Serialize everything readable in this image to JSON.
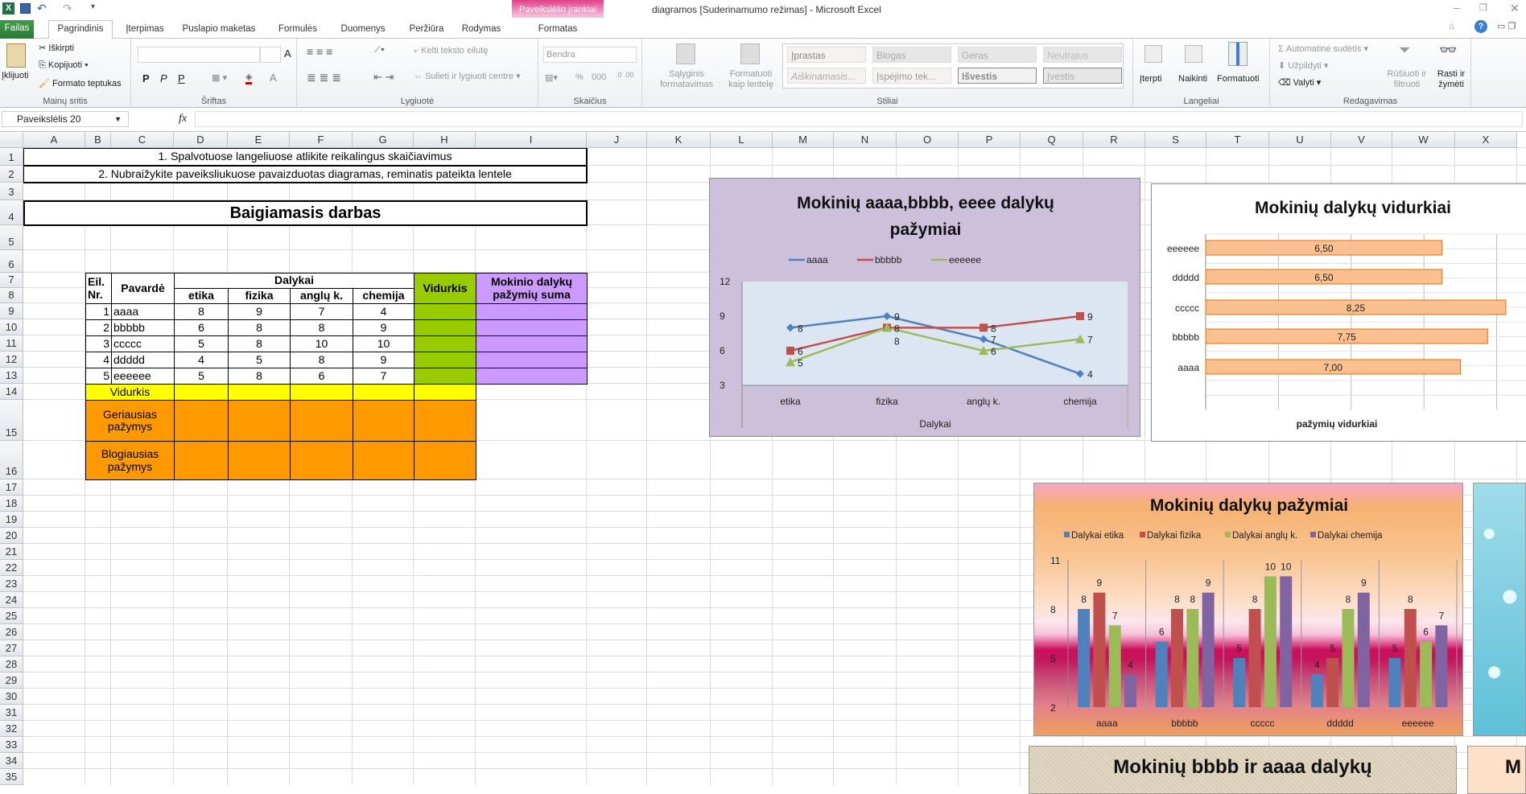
{
  "window": {
    "title": "diagramos  [Suderinamumo režimas]  -  Microsoft Excel",
    "context_tab_group": "Paveikslėlio įrankiai"
  },
  "tabs": [
    {
      "label": "Failas"
    },
    {
      "label": "Pagrindinis"
    },
    {
      "label": "Įterpimas"
    },
    {
      "label": "Puslapio maketas"
    },
    {
      "label": "Formulės"
    },
    {
      "label": "Duomenys"
    },
    {
      "label": "Peržiūra"
    },
    {
      "label": "Rodymas"
    },
    {
      "label": "Formatas"
    }
  ],
  "ribbon": {
    "clipboard": {
      "label": "Mainų sritis",
      "paste": "Įklijuoti",
      "cut": "Iškirpti",
      "copy": "Kopijuoti",
      "format_painter": "Formato teptukas"
    },
    "font": {
      "label": "Šriftas",
      "bold": "P",
      "italic": "P",
      "underline": "P"
    },
    "alignment": {
      "label": "Lygiuotė",
      "wrap": "Kelti teksto eilutę",
      "merge": "Sulieti ir lygiuoti centre"
    },
    "number": {
      "label": "Skaičius",
      "format": "Bendra",
      "percent": "%",
      "thousands": "000"
    },
    "styles": {
      "label": "Stiliai",
      "conditional": "Sąlyginis formatavimas",
      "format_table": "Formatuoti kaip lentelę",
      "items": [
        "Įprastas",
        "Blogas",
        "Geras",
        "Neutralus",
        "Aiškinamasis...",
        "Įspėjimo tek...",
        "Išvestis",
        "Įvestis"
      ]
    },
    "cells": {
      "label": "Langeliai",
      "insert": "Įterpti",
      "delete": "Naikinti",
      "format": "Formatuoti"
    },
    "editing": {
      "label": "Redagavimas",
      "autosum": "Automatinė sudėtis",
      "fill": "Užpildyti",
      "clear": "Valyti",
      "sort": "Rūšiuoti ir filtruoti",
      "find": "Rasti ir žymėti"
    }
  },
  "formula_bar": {
    "name_box": "Paveikslėlis 20",
    "fx": "fx",
    "value": ""
  },
  "columns": [
    "A",
    "B",
    "C",
    "D",
    "E",
    "F",
    "G",
    "H",
    "I",
    "J",
    "K",
    "L",
    "M",
    "N",
    "O",
    "P",
    "Q",
    "R",
    "S",
    "T",
    "U",
    "V",
    "W",
    "X"
  ],
  "rows": [
    "1",
    "2",
    "3",
    "4",
    "5",
    "6",
    "7",
    "8",
    "9",
    "10",
    "11",
    "12",
    "13",
    "14",
    "15",
    "16",
    "17",
    "18",
    "19",
    "20",
    "21",
    "22",
    "23",
    "24",
    "25",
    "26",
    "27",
    "28",
    "29",
    "30",
    "31",
    "32",
    "33",
    "34",
    "35"
  ],
  "sheet": {
    "instruction1": "1. Spalvotuose langeliuose atlikite reikalingus skaičiavimus",
    "instruction2": "2. Nubraižykite paveiksliukuose pavaizduotas diagramas, reminatis pateikta lentele",
    "heading": "Baigiamasis darbas",
    "headers": {
      "nr": "Eil. Nr.",
      "surname": "Pavardė",
      "subjects": "Dalykai",
      "subject_names": [
        "etika",
        "fizika",
        "anglų k.",
        "chemija"
      ],
      "average": "Vidurkis",
      "sum": "Mokinio  dalykų pažymių suma"
    },
    "students": [
      {
        "nr": "1",
        "name": "aaaa",
        "grades": [
          "8",
          "9",
          "7",
          "4"
        ]
      },
      {
        "nr": "2",
        "name": "bbbbb",
        "grades": [
          "6",
          "8",
          "8",
          "9"
        ]
      },
      {
        "nr": "3",
        "name": "ccccc",
        "grades": [
          "5",
          "8",
          "10",
          "10"
        ]
      },
      {
        "nr": "4",
        "name": "ddddd",
        "grades": [
          "4",
          "5",
          "8",
          "9"
        ]
      },
      {
        "nr": "5",
        "name": "eeeeee",
        "grades": [
          "5",
          "8",
          "6",
          "7"
        ]
      }
    ],
    "average_row": "Vidurkis",
    "best_row": "Geriausias pažymys",
    "worst_row": "Blogiausias pažymys",
    "colors": {
      "green": "#99cc00",
      "purple": "#cc99ff",
      "yellow": "#ffff00",
      "orange": "#ff9900"
    }
  },
  "chart_data": [
    {
      "type": "line",
      "title": "Mokinių aaaa,bbbb, eeee dalykų pažymiai",
      "xlabel": "Dalykai",
      "ylabel": "",
      "categories": [
        "etika",
        "fizika",
        "anglų k.",
        "chemija"
      ],
      "ylim": [
        3,
        12
      ],
      "yticks": [
        3,
        6,
        9,
        12
      ],
      "legend": "top",
      "series": [
        {
          "name": "aaaa",
          "values": [
            8,
            9,
            7,
            4
          ],
          "color": "#4f81bd",
          "marker": "diamond"
        },
        {
          "name": "bbbbb",
          "values": [
            6,
            8,
            8,
            9
          ],
          "color": "#c0504d",
          "marker": "square"
        },
        {
          "name": "eeeeee",
          "values": [
            5,
            8,
            6,
            7
          ],
          "color": "#9bbb59",
          "marker": "triangle"
        }
      ]
    },
    {
      "type": "bar",
      "orientation": "horizontal",
      "title": "Mokinių dalykų vidurkiai",
      "xlabel": "pažymių vidurkiai",
      "categories": [
        "aaaa",
        "bbbbb",
        "ccccc",
        "ddddd",
        "eeeeee"
      ],
      "values": [
        7.0,
        7.75,
        8.25,
        6.5,
        6.5
      ],
      "labels": [
        "7,00",
        "7,75",
        "8,25",
        "6,50",
        "6,50"
      ],
      "xlim": [
        0,
        10
      ],
      "color": "#fac090"
    },
    {
      "type": "bar",
      "title": "Mokinių dalykų pažymiai",
      "categories": [
        "aaaa",
        "bbbbb",
        "ccccc",
        "ddddd",
        "eeeeee"
      ],
      "ylim": [
        2,
        11
      ],
      "yticks": [
        2,
        5,
        8,
        11
      ],
      "legend": "top",
      "series": [
        {
          "name": "Dalykai etika",
          "values": [
            8,
            6,
            5,
            4,
            5
          ],
          "color": "#4f81bd"
        },
        {
          "name": "Dalykai fizika",
          "values": [
            9,
            8,
            8,
            5,
            8
          ],
          "color": "#c0504d"
        },
        {
          "name": "Dalykai anglų k.",
          "values": [
            7,
            8,
            10,
            8,
            6
          ],
          "color": "#9bbb59"
        },
        {
          "name": "Dalykai chemija",
          "values": [
            4,
            9,
            10,
            9,
            7
          ],
          "color": "#8064a2"
        }
      ]
    },
    {
      "type": "bar",
      "title": "Mokinių bbbb ir aaaa dalykų"
    },
    {
      "type": "bar",
      "title": "M"
    }
  ]
}
